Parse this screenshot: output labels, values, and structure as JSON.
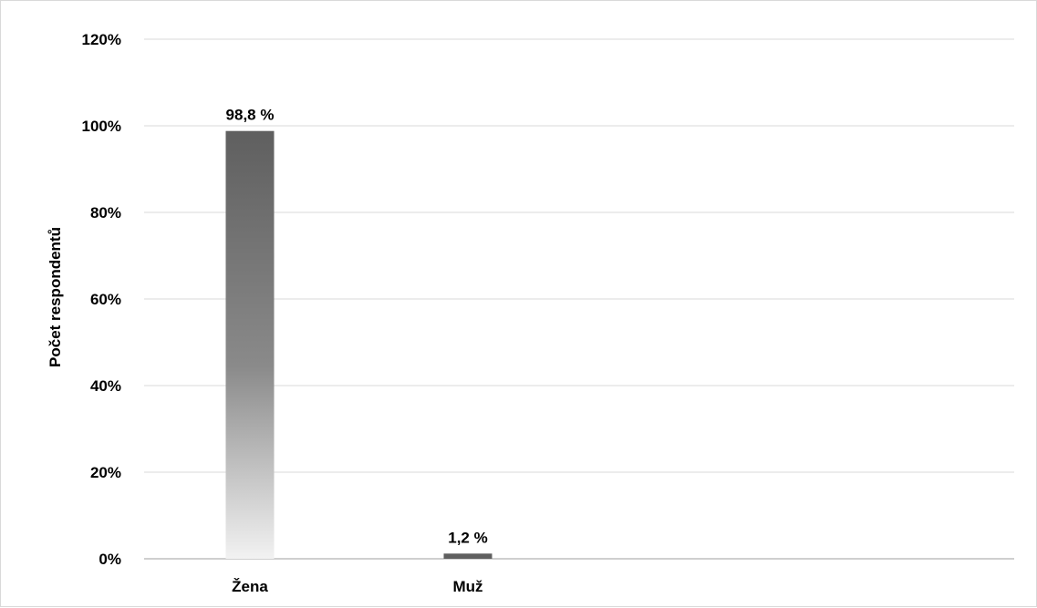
{
  "chart_data": {
    "type": "bar",
    "title": "",
    "xlabel": "",
    "ylabel": "Počet respondentů",
    "categories": [
      "Žena",
      "Muž"
    ],
    "values": [
      98.8,
      1.2
    ],
    "data_labels": [
      "98,8 %",
      "1,2 %"
    ],
    "ylim": [
      0,
      120
    ],
    "y_ticks": [
      0,
      20,
      40,
      60,
      80,
      100,
      120
    ],
    "y_tick_labels": [
      "0%",
      "20%",
      "40%",
      "60%",
      "80%",
      "100%",
      "120%"
    ],
    "grid": true,
    "legend": "none",
    "colors": {
      "bar_top": "#5f5f5f",
      "bar_mid": "#8a8a8a",
      "bar_bottom": "#f2f2f2",
      "gridline": "#d9d9d9",
      "axis": "#bfbfbf"
    }
  }
}
